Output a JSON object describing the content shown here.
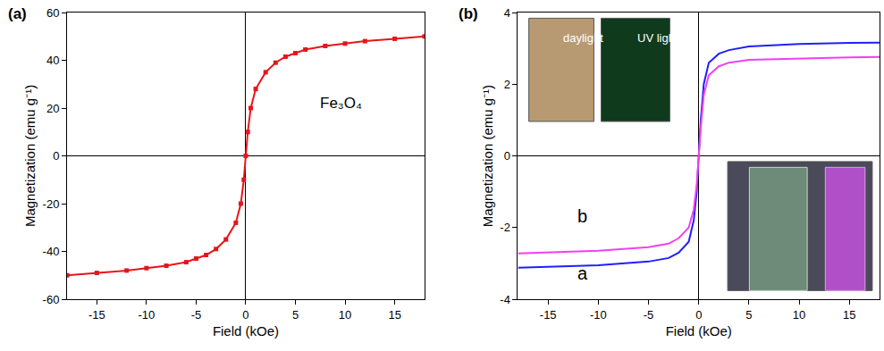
{
  "chart_data": [
    {
      "type": "line",
      "title": "(a)",
      "x_label": "Field (kOe)",
      "y_label": "Magnetization (emu g⁻¹)",
      "x": [
        -18,
        -15,
        -12,
        -10,
        -8,
        -6,
        -5,
        -4,
        -3,
        -2,
        -1,
        -0.5,
        -0.2,
        0,
        0.2,
        0.5,
        1,
        2,
        3,
        4,
        5,
        6,
        8,
        10,
        12,
        15,
        18
      ],
      "series": [
        {
          "name": "Fe₃O₄",
          "color": "#e8141b",
          "marker": "square",
          "line_style": "solid",
          "values": [
            -50,
            -49,
            -48,
            -47,
            -46,
            -44.5,
            -43,
            -41.5,
            -39,
            -35,
            -28,
            -20,
            -10,
            0,
            10,
            20,
            28,
            35,
            39,
            41.5,
            43,
            44.5,
            46,
            47,
            48,
            49,
            50
          ]
        }
      ],
      "xlim": [
        -18,
        18
      ],
      "xticks": [
        -15,
        -10,
        -5,
        0,
        5,
        10,
        15
      ],
      "ylim": [
        -60,
        60
      ],
      "yticks": [
        -60,
        -40,
        -20,
        0,
        20,
        40,
        60
      ],
      "grid": false
    },
    {
      "type": "line",
      "title": "(b)",
      "x_label": "Field (kOe)",
      "y_label": "Magnetization (emu g⁻¹)",
      "annotations": [
        "daylight",
        "UV light"
      ],
      "x": [
        -18,
        -15,
        -10,
        -5,
        -3,
        -2,
        -1,
        -0.5,
        -0.2,
        0,
        0.2,
        0.5,
        1,
        2,
        3,
        5,
        10,
        15,
        18
      ],
      "series": [
        {
          "name": "a",
          "color": "#1f1fff",
          "line_style": "solid",
          "values": [
            -3.12,
            -3.1,
            -3.05,
            -2.95,
            -2.85,
            -2.7,
            -2.4,
            -1.8,
            -1.0,
            0,
            1.0,
            2.0,
            2.6,
            2.85,
            2.95,
            3.05,
            3.12,
            3.15,
            3.16
          ]
        },
        {
          "name": "b",
          "color": "#f040f0",
          "line_style": "solid",
          "values": [
            -2.72,
            -2.7,
            -2.65,
            -2.55,
            -2.45,
            -2.3,
            -2.0,
            -1.5,
            -0.8,
            0,
            0.8,
            1.7,
            2.25,
            2.5,
            2.6,
            2.68,
            2.72,
            2.75,
            2.76
          ]
        }
      ],
      "xlim": [
        -18,
        18
      ],
      "xticks": [
        -15,
        -10,
        -5,
        0,
        5,
        10,
        15
      ],
      "ylim": [
        -4,
        4
      ],
      "yticks": [
        -4,
        -2,
        0,
        2,
        4
      ],
      "grid": false
    }
  ]
}
